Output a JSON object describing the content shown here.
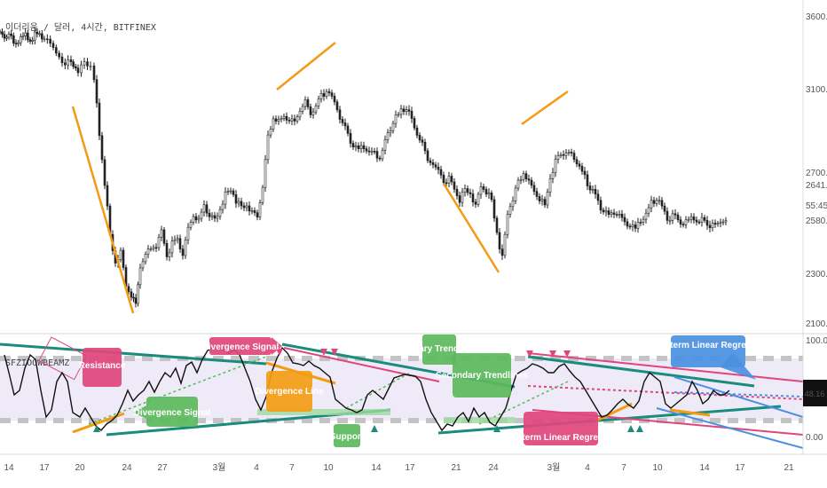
{
  "chart_data": [
    {
      "type": "candlestick",
      "title": "이더리움 / 달러, 4시간, BITFINEX",
      "y_axis_ticks": [
        "3600.00",
        "3100.00",
        "2700.00",
        "2300.00",
        "2100.00"
      ],
      "y_axis_ticks_faint": [
        "2641.50",
        "55:45",
        "2580.00"
      ],
      "ylim": [
        2050,
        3650
      ],
      "price_path": [
        [
          0,
          3540
        ],
        [
          5,
          3500
        ],
        [
          10,
          3530
        ],
        [
          18,
          3470
        ],
        [
          26,
          3530
        ],
        [
          34,
          3490
        ],
        [
          42,
          3540
        ],
        [
          50,
          3500
        ],
        [
          60,
          3460
        ],
        [
          70,
          3400
        ],
        [
          80,
          3380
        ],
        [
          88,
          3350
        ],
        [
          95,
          3380
        ],
        [
          102,
          3390
        ],
        [
          106,
          3300
        ],
        [
          112,
          3050
        ],
        [
          118,
          2800
        ],
        [
          124,
          2550
        ],
        [
          130,
          2420
        ],
        [
          136,
          2470
        ],
        [
          142,
          2300
        ],
        [
          148,
          2250
        ],
        [
          153,
          2200
        ],
        [
          158,
          2400
        ],
        [
          164,
          2450
        ],
        [
          170,
          2480
        ],
        [
          176,
          2500
        ],
        [
          182,
          2560
        ],
        [
          188,
          2450
        ],
        [
          194,
          2500
        ],
        [
          200,
          2520
        ],
        [
          206,
          2460
        ],
        [
          212,
          2570
        ],
        [
          218,
          2640
        ],
        [
          224,
          2620
        ],
        [
          230,
          2680
        ],
        [
          236,
          2650
        ],
        [
          242,
          2620
        ],
        [
          248,
          2680
        ],
        [
          254,
          2740
        ],
        [
          260,
          2770
        ],
        [
          266,
          2720
        ],
        [
          272,
          2680
        ],
        [
          278,
          2700
        ],
        [
          284,
          2660
        ],
        [
          290,
          2640
        ],
        [
          296,
          2780
        ],
        [
          302,
          3020
        ],
        [
          308,
          3120
        ],
        [
          314,
          3100
        ],
        [
          320,
          3130
        ],
        [
          326,
          3110
        ],
        [
          332,
          3090
        ],
        [
          338,
          3160
        ],
        [
          344,
          3200
        ],
        [
          350,
          3140
        ],
        [
          356,
          3180
        ],
        [
          362,
          3230
        ],
        [
          368,
          3250
        ],
        [
          374,
          3220
        ],
        [
          380,
          3160
        ],
        [
          386,
          3090
        ],
        [
          392,
          3040
        ],
        [
          398,
          2980
        ],
        [
          404,
          2960
        ],
        [
          410,
          2980
        ],
        [
          416,
          2940
        ],
        [
          422,
          2950
        ],
        [
          428,
          2920
        ],
        [
          434,
          3000
        ],
        [
          440,
          3070
        ],
        [
          446,
          3120
        ],
        [
          452,
          3150
        ],
        [
          458,
          3170
        ],
        [
          464,
          3100
        ],
        [
          470,
          3040
        ],
        [
          476,
          2990
        ],
        [
          482,
          2910
        ],
        [
          488,
          2900
        ],
        [
          494,
          2850
        ],
        [
          500,
          2810
        ],
        [
          506,
          2820
        ],
        [
          512,
          2780
        ],
        [
          518,
          2720
        ],
        [
          524,
          2760
        ],
        [
          530,
          2760
        ],
        [
          536,
          2690
        ],
        [
          542,
          2800
        ],
        [
          548,
          2750
        ],
        [
          554,
          2720
        ],
        [
          560,
          2560
        ],
        [
          566,
          2430
        ],
        [
          572,
          2660
        ],
        [
          578,
          2730
        ],
        [
          584,
          2810
        ],
        [
          590,
          2850
        ],
        [
          596,
          2800
        ],
        [
          602,
          2770
        ],
        [
          608,
          2720
        ],
        [
          614,
          2690
        ],
        [
          620,
          2840
        ],
        [
          626,
          2900
        ],
        [
          632,
          2940
        ],
        [
          638,
          2960
        ],
        [
          644,
          2940
        ],
        [
          650,
          2900
        ],
        [
          656,
          2850
        ],
        [
          662,
          2800
        ],
        [
          668,
          2760
        ],
        [
          674,
          2700
        ],
        [
          680,
          2660
        ],
        [
          686,
          2640
        ],
        [
          692,
          2660
        ],
        [
          698,
          2640
        ],
        [
          704,
          2600
        ],
        [
          710,
          2590
        ],
        [
          716,
          2570
        ],
        [
          722,
          2620
        ],
        [
          728,
          2640
        ],
        [
          734,
          2700
        ],
        [
          740,
          2720
        ],
        [
          746,
          2680
        ],
        [
          752,
          2630
        ],
        [
          758,
          2640
        ],
        [
          764,
          2620
        ],
        [
          770,
          2600
        ],
        [
          776,
          2620
        ],
        [
          782,
          2630
        ],
        [
          788,
          2610
        ],
        [
          794,
          2620
        ],
        [
          800,
          2600
        ],
        [
          806,
          2590
        ],
        [
          812,
          2620
        ],
        [
          818,
          2610
        ],
        [
          822,
          2640
        ]
      ],
      "trend_lines": [
        {
          "color": "#F39C12",
          "points": [
            [
              82,
              120
            ],
            [
              150,
              353
            ]
          ]
        },
        {
          "color": "#F39C12",
          "points": [
            [
              312,
              101
            ],
            [
              378,
              48
            ]
          ]
        },
        {
          "color": "#F39C12",
          "points": [
            [
              500,
              207
            ],
            [
              562,
              307
            ]
          ]
        },
        {
          "color": "#F39C12",
          "points": [
            [
              588,
              140
            ],
            [
              640,
              103
            ]
          ]
        }
      ]
    },
    {
      "type": "line",
      "title": "SFZIOOWBEAMZ",
      "right_axis_ticks": [
        "100.00",
        "0.00"
      ],
      "last_value_badge": "48.16",
      "x_axis_labels": [
        "14",
        "17",
        "20",
        "24",
        "27",
        "3월",
        "4",
        "7",
        "10",
        "14",
        "17",
        "21",
        "24",
        "3월",
        "4",
        "7",
        "10",
        "14",
        "17",
        "21"
      ],
      "oscillator_path": [
        [
          5,
          400
        ],
        [
          10,
          420
        ],
        [
          16,
          445
        ],
        [
          22,
          440
        ],
        [
          28,
          415
        ],
        [
          34,
          400
        ],
        [
          40,
          405
        ],
        [
          46,
          440
        ],
        [
          52,
          470
        ],
        [
          58,
          462
        ],
        [
          64,
          430
        ],
        [
          70,
          420
        ],
        [
          76,
          430
        ],
        [
          82,
          465
        ],
        [
          90,
          470
        ],
        [
          96,
          460
        ],
        [
          102,
          470
        ],
        [
          108,
          480
        ],
        [
          114,
          485
        ],
        [
          120,
          478
        ],
        [
          126,
          474
        ],
        [
          132,
          468
        ],
        [
          138,
          455
        ],
        [
          144,
          440
        ],
        [
          150,
          452
        ],
        [
          156,
          445
        ],
        [
          162,
          440
        ],
        [
          168,
          430
        ],
        [
          174,
          442
        ],
        [
          180,
          430
        ],
        [
          186,
          420
        ],
        [
          192,
          425
        ],
        [
          198,
          415
        ],
        [
          204,
          432
        ],
        [
          210,
          412
        ],
        [
          216,
          408
        ],
        [
          222,
          420
        ],
        [
          228,
          405
        ],
        [
          234,
          395
        ],
        [
          240,
          392
        ],
        [
          246,
          390
        ],
        [
          252,
          395
        ],
        [
          258,
          398
        ],
        [
          264,
          394
        ],
        [
          270,
          400
        ],
        [
          276,
          415
        ],
        [
          282,
          430
        ],
        [
          288,
          450
        ],
        [
          294,
          462
        ],
        [
          300,
          447
        ],
        [
          306,
          420
        ],
        [
          312,
          404
        ],
        [
          318,
          392
        ],
        [
          324,
          398
        ],
        [
          330,
          409
        ],
        [
          336,
          410
        ],
        [
          342,
          412
        ],
        [
          348,
          407
        ],
        [
          354,
          412
        ],
        [
          360,
          415
        ],
        [
          366,
          420
        ],
        [
          372,
          425
        ],
        [
          378,
          450
        ],
        [
          384,
          455
        ],
        [
          390,
          460
        ],
        [
          396,
          462
        ],
        [
          402,
          465
        ],
        [
          408,
          462
        ],
        [
          414,
          445
        ],
        [
          420,
          440
        ],
        [
          426,
          445
        ],
        [
          432,
          450
        ],
        [
          438,
          438
        ],
        [
          444,
          426
        ],
        [
          450,
          424
        ],
        [
          456,
          422
        ],
        [
          462,
          423
        ],
        [
          468,
          424
        ],
        [
          474,
          430
        ],
        [
          480,
          450
        ],
        [
          486,
          465
        ],
        [
          492,
          475
        ],
        [
          498,
          485
        ],
        [
          504,
          478
        ],
        [
          510,
          480
        ],
        [
          516,
          470
        ],
        [
          522,
          465
        ],
        [
          528,
          475
        ],
        [
          534,
          460
        ],
        [
          540,
          470
        ],
        [
          546,
          465
        ],
        [
          552,
          476
        ],
        [
          558,
          480
        ],
        [
          564,
          470
        ],
        [
          570,
          460
        ],
        [
          576,
          440
        ],
        [
          582,
          422
        ],
        [
          588,
          418
        ],
        [
          594,
          415
        ],
        [
          600,
          410
        ],
        [
          606,
          412
        ],
        [
          612,
          415
        ],
        [
          618,
          420
        ],
        [
          624,
          420
        ],
        [
          630,
          413
        ],
        [
          636,
          410
        ],
        [
          642,
          418
        ],
        [
          648,
          425
        ],
        [
          654,
          430
        ],
        [
          660,
          440
        ],
        [
          666,
          450
        ],
        [
          672,
          460
        ],
        [
          678,
          470
        ],
        [
          684,
          468
        ],
        [
          690,
          462
        ],
        [
          696,
          455
        ],
        [
          702,
          450
        ],
        [
          708,
          456
        ],
        [
          714,
          460
        ],
        [
          720,
          452
        ],
        [
          726,
          430
        ],
        [
          732,
          420
        ],
        [
          738,
          425
        ],
        [
          744,
          430
        ],
        [
          750,
          455
        ],
        [
          756,
          460
        ],
        [
          762,
          455
        ],
        [
          768,
          450
        ],
        [
          774,
          445
        ],
        [
          780,
          430
        ],
        [
          786,
          440
        ],
        [
          792,
          455
        ],
        [
          798,
          450
        ],
        [
          804,
          440
        ],
        [
          810,
          445
        ],
        [
          816,
          445
        ],
        [
          822,
          440
        ]
      ],
      "annotations": [
        {
          "text": "Resistance",
          "color": "#E0457B"
        },
        {
          "text": "Divergence Signal",
          "color": "#E0457B"
        },
        {
          "text": "Divergence Line",
          "color": "#F39C12"
        },
        {
          "text": "Divergence Signal",
          "color": "#5CB85C"
        },
        {
          "text": "Support",
          "color": "#5CB85C"
        },
        {
          "text": "Primary Trendlines",
          "color": "#5CB85C"
        },
        {
          "text": "Secondary Trendlines",
          "color": "#5CB85C"
        },
        {
          "text": "Longterm Linear Regression",
          "color": "#E0457B"
        },
        {
          "text": "Shortterm Linear Regression",
          "color": "#4A90E2"
        }
      ]
    }
  ],
  "colors": {
    "teal": "#1A8C7E",
    "orange": "#F39C12",
    "pink": "#E0457B",
    "green": "#5CB85C",
    "blue": "#4A90E2",
    "badge": "#111111"
  }
}
